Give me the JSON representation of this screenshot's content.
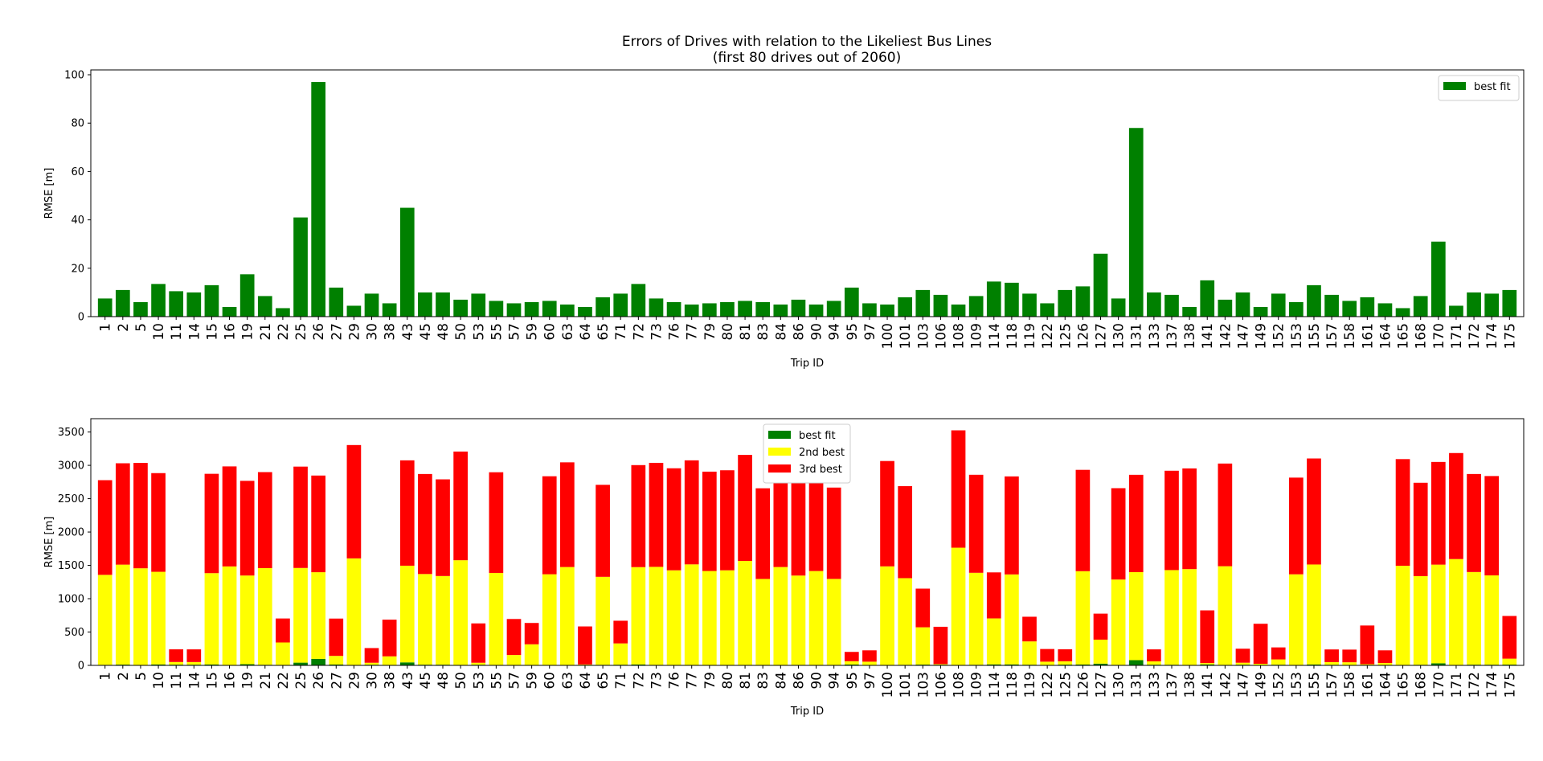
{
  "figure": {
    "title_line1": "Errors of Drives with relation to the Likeliest Bus Lines",
    "title_line2": "(first 80 drives out of 2060)"
  },
  "chart_data": [
    {
      "type": "bar",
      "title": "Errors of Drives with relation to the Likeliest Bus Lines\n(first 80 drives out of 2060)",
      "xlabel": "Trip ID",
      "ylabel": "RMSE [m]",
      "ylim": [
        0,
        102
      ],
      "yticks": [
        0,
        20,
        40,
        60,
        80,
        100
      ],
      "grid": false,
      "legend_position": "top-right",
      "categories": [
        "1",
        "2",
        "5",
        "10",
        "11",
        "14",
        "15",
        "16",
        "19",
        "21",
        "22",
        "25",
        "26",
        "27",
        "29",
        "30",
        "38",
        "43",
        "45",
        "48",
        "50",
        "53",
        "55",
        "57",
        "59",
        "60",
        "63",
        "64",
        "65",
        "71",
        "72",
        "73",
        "76",
        "77",
        "79",
        "80",
        "81",
        "83",
        "84",
        "86",
        "90",
        "94",
        "95",
        "97",
        "100",
        "101",
        "103",
        "106",
        "108",
        "109",
        "114",
        "118",
        "119",
        "122",
        "125",
        "126",
        "127",
        "130",
        "131",
        "133",
        "137",
        "138",
        "141",
        "142",
        "147",
        "149",
        "152",
        "153",
        "155",
        "157",
        "158",
        "161",
        "164",
        "165",
        "168",
        "170",
        "171",
        "172",
        "174",
        "175"
      ],
      "series": [
        {
          "name": "best fit",
          "color": "#008000",
          "values": [
            7.5,
            11,
            6,
            13.5,
            10.5,
            10,
            13,
            4,
            17.5,
            8.5,
            3.5,
            41,
            97,
            12,
            4.5,
            9.5,
            5.5,
            45,
            10,
            10,
            7,
            9.5,
            6.5,
            5.5,
            6,
            6.5,
            5,
            4,
            8,
            9.5,
            13.5,
            7.5,
            6,
            5,
            5.5,
            6,
            6.5,
            6,
            5,
            7,
            5,
            6.5,
            12,
            5.5,
            5,
            8,
            11,
            9,
            5,
            8.5,
            14.5,
            14,
            9.5,
            5.5,
            11,
            12.5,
            26,
            7.5,
            78,
            10,
            9,
            4,
            15,
            7,
            10,
            4,
            9.5,
            6,
            13,
            9,
            6.5,
            8,
            5.5,
            3.5,
            8.5,
            31,
            4.5,
            10,
            9.5,
            11
          ]
        }
      ]
    },
    {
      "type": "bar",
      "stacked": true,
      "xlabel": "Trip ID",
      "ylabel": "RMSE [m]",
      "ylim": [
        0,
        3700
      ],
      "yticks": [
        0,
        500,
        1000,
        1500,
        2000,
        2500,
        3000,
        3500
      ],
      "grid": false,
      "legend_position": "top-center",
      "categories": [
        "1",
        "2",
        "5",
        "10",
        "11",
        "14",
        "15",
        "16",
        "19",
        "21",
        "22",
        "25",
        "26",
        "27",
        "29",
        "30",
        "38",
        "43",
        "45",
        "48",
        "50",
        "53",
        "55",
        "57",
        "59",
        "60",
        "63",
        "64",
        "65",
        "71",
        "72",
        "73",
        "76",
        "77",
        "79",
        "80",
        "81",
        "83",
        "84",
        "86",
        "90",
        "94",
        "95",
        "97",
        "100",
        "101",
        "103",
        "106",
        "108",
        "109",
        "114",
        "118",
        "119",
        "122",
        "125",
        "126",
        "127",
        "130",
        "131",
        "133",
        "137",
        "138",
        "141",
        "142",
        "147",
        "149",
        "152",
        "153",
        "155",
        "157",
        "158",
        "161",
        "164",
        "165",
        "168",
        "170",
        "171",
        "172",
        "174",
        "175"
      ],
      "series": [
        {
          "name": "best fit",
          "color": "#008000",
          "values": [
            7.5,
            11,
            6,
            13.5,
            10.5,
            10,
            13,
            4,
            17.5,
            8.5,
            3.5,
            41,
            97,
            12,
            4.5,
            9.5,
            5.5,
            45,
            10,
            10,
            7,
            9.5,
            6.5,
            5.5,
            6,
            6.5,
            5,
            4,
            8,
            9.5,
            13.5,
            7.5,
            6,
            5,
            5.5,
            6,
            6.5,
            6,
            5,
            7,
            5,
            6.5,
            12,
            5.5,
            5,
            8,
            11,
            9,
            5,
            8.5,
            14.5,
            14,
            9.5,
            5.5,
            11,
            12.5,
            26,
            7.5,
            78,
            10,
            9,
            4,
            15,
            7,
            10,
            4,
            9.5,
            6,
            13,
            9,
            6.5,
            8,
            5.5,
            3.5,
            8.5,
            31,
            4.5,
            10,
            9.5,
            11
          ]
        },
        {
          "name": "2nd best",
          "color": "#ffff00",
          "values": [
            1350,
            1500,
            1450,
            1390,
            40,
            40,
            1370,
            1480,
            1330,
            1450,
            340,
            1420,
            1300,
            130,
            1600,
            30,
            130,
            1450,
            1360,
            1330,
            1570,
            30,
            1380,
            150,
            310,
            1360,
            1470,
            10,
            1320,
            320,
            1460,
            1470,
            1420,
            1510,
            1410,
            1420,
            1560,
            1290,
            1470,
            1340,
            1410,
            1290,
            50,
            50,
            1480,
            1300,
            560,
            10,
            1760,
            1380,
            690,
            1350,
            350,
            50,
            50,
            1400,
            360,
            1280,
            1320,
            50,
            1420,
            1440,
            20,
            1480,
            30,
            20,
            80,
            1360,
            1500,
            40,
            40,
            10,
            30,
            1490,
            1330,
            1480,
            1590,
            1390,
            1340,
            90
          ]
        },
        {
          "name": "3rd best",
          "color": "#ff0000",
          "values": [
            1420,
            1520,
            1580,
            1480,
            190,
            190,
            1490,
            1500,
            1420,
            1440,
            360,
            1520,
            1450,
            560,
            1700,
            220,
            550,
            1580,
            1500,
            1450,
            1630,
            590,
            1510,
            540,
            320,
            1470,
            1570,
            570,
            1380,
            340,
            1530,
            1560,
            1530,
            1560,
            1490,
            1500,
            1590,
            1360,
            1580,
            1410,
            1440,
            1370,
            140,
            170,
            1580,
            1380,
            580,
            560,
            1760,
            1470,
            690,
            1470,
            370,
            190,
            180,
            1520,
            390,
            1370,
            1460,
            180,
            1490,
            1510,
            790,
            1540,
            210,
            600,
            180,
            1450,
            1590,
            190,
            190,
            580,
            190,
            1600,
            1400,
            1540,
            1590,
            1470,
            1490,
            640
          ]
        }
      ]
    }
  ]
}
